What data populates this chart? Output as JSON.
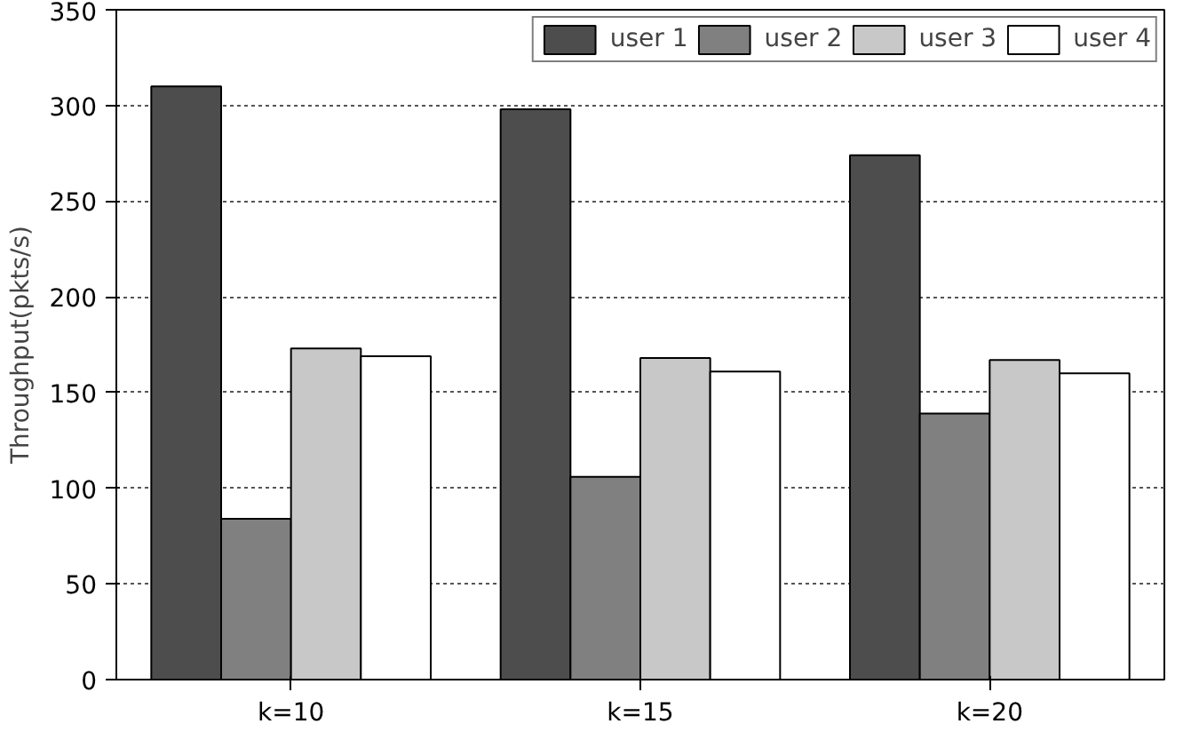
{
  "chart_data": {
    "type": "bar",
    "ylabel": "Throughput(pkts/s)",
    "categories": [
      "k=10",
      "k=15",
      "k=20"
    ],
    "series": [
      {
        "name": "user 1",
        "color": "#4d4d4d",
        "values": [
          310,
          298,
          274
        ]
      },
      {
        "name": "user 2",
        "color": "#808080",
        "values": [
          84,
          106,
          139
        ]
      },
      {
        "name": "user 3",
        "color": "#c8c8c8",
        "values": [
          173,
          168,
          167
        ]
      },
      {
        "name": "user 4",
        "color": "#ffffff",
        "values": [
          169,
          161,
          160
        ]
      }
    ],
    "ylim": [
      0,
      350
    ],
    "yticks": [
      0,
      50,
      100,
      150,
      200,
      250,
      300,
      350
    ],
    "grid": "y",
    "legend": "top right"
  }
}
